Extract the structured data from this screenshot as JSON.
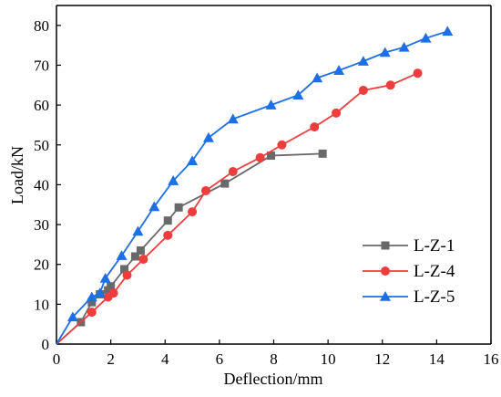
{
  "chart_data": {
    "type": "line",
    "title": "",
    "xlabel": "Deflection/mm",
    "ylabel": "Load/kN",
    "xlim": [
      0,
      16
    ],
    "ylim": [
      0,
      85
    ],
    "xticks": [
      0,
      2,
      4,
      6,
      8,
      10,
      12,
      14,
      16
    ],
    "yticks": [
      0,
      10,
      20,
      30,
      40,
      50,
      60,
      70,
      80
    ],
    "grid": false,
    "legend_position": "bottom-right",
    "series": [
      {
        "name": "L-Z-1",
        "color": "#696969",
        "marker": "square",
        "x": [
          0,
          0.9,
          1.3,
          1.6,
          1.9,
          2.0,
          2.5,
          2.9,
          3.1,
          4.1,
          4.5,
          6.2,
          7.9,
          9.8
        ],
        "y": [
          0,
          5.5,
          10.5,
          12.5,
          13.5,
          14.5,
          18.8,
          22.0,
          23.5,
          31.0,
          34.3,
          40.3,
          47.3,
          47.8
        ]
      },
      {
        "name": "L-Z-4",
        "color": "#f03c3c",
        "marker": "circle",
        "x": [
          0,
          1.3,
          1.9,
          2.1,
          2.6,
          3.2,
          4.1,
          5.0,
          5.5,
          6.5,
          7.5,
          8.3,
          9.5,
          10.3,
          11.3,
          12.3,
          13.3
        ],
        "y": [
          0,
          8.0,
          11.8,
          12.8,
          17.3,
          21.3,
          27.3,
          33.2,
          38.5,
          43.3,
          46.8,
          50.0,
          54.5,
          58.0,
          63.7,
          65.0,
          68.0
        ]
      },
      {
        "name": "L-Z-5",
        "color": "#1c6fe6",
        "marker": "triangle",
        "x": [
          0,
          0.6,
          1.3,
          1.6,
          1.8,
          2.4,
          3.0,
          3.6,
          4.3,
          5.0,
          5.6,
          6.5,
          7.9,
          8.9,
          9.6,
          10.4,
          11.3,
          12.1,
          12.8,
          13.6,
          14.4
        ],
        "y": [
          0,
          6.8,
          11.8,
          12.8,
          16.5,
          22.2,
          28.3,
          34.5,
          41.0,
          46.0,
          51.8,
          56.5,
          60.0,
          62.5,
          66.8,
          68.7,
          71.0,
          73.2,
          74.5,
          76.8,
          78.5
        ]
      }
    ]
  }
}
